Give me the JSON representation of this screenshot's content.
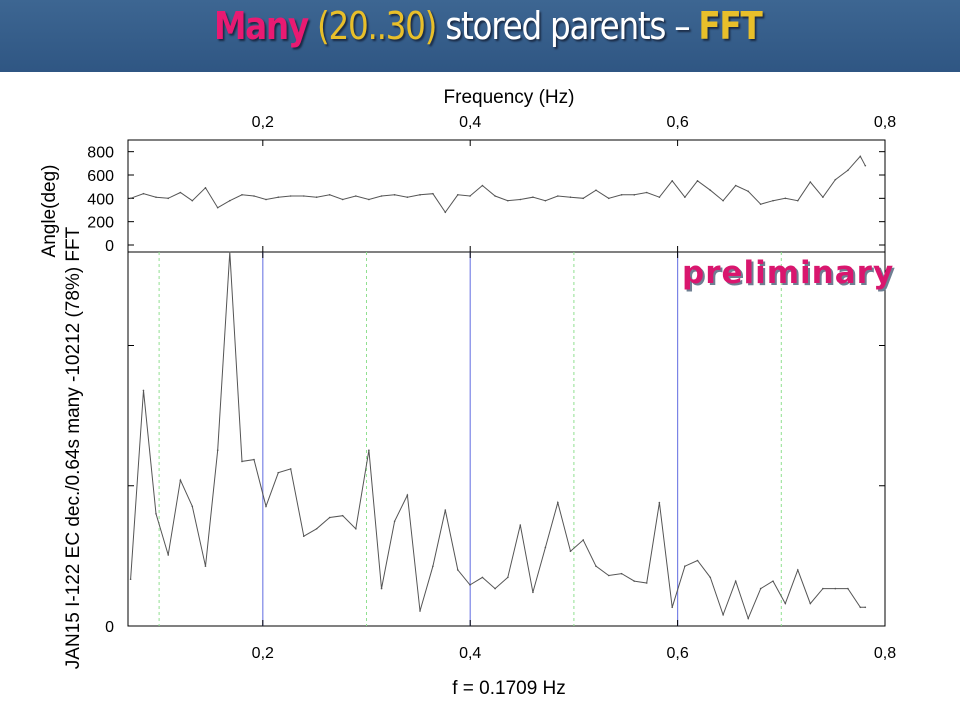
{
  "slide": {
    "title_parts": [
      "Many",
      " (20..30)",
      " stored parents – ",
      "FFT"
    ],
    "colors": {
      "title_bar": "#345b88",
      "many": "#e91a72",
      "accent": "#e8bf2a",
      "preliminary": "#d9166e"
    }
  },
  "annotation": "preliminary",
  "chart_data": [
    {
      "type": "line",
      "panel": "angle",
      "xlabel": "Frequency (Hz)",
      "ylabel": "Angle(deg)",
      "x_ticks": [
        "0,2",
        "0,4",
        "0,6",
        "0,8"
      ],
      "x_tick_values": [
        0.2,
        0.4,
        0.6,
        0.8
      ],
      "y_ticks": [
        "800",
        "600",
        "400",
        "200",
        "0"
      ],
      "y_tick_values": [
        800,
        600,
        400,
        200,
        0
      ],
      "xlim": [
        0.07,
        0.8
      ],
      "ylim": [
        -60,
        900
      ],
      "x": [
        0.0725,
        0.0849,
        0.097,
        0.1088,
        0.1205,
        0.132,
        0.1447,
        0.1565,
        0.1682,
        0.1799,
        0.1915,
        0.2031,
        0.2149,
        0.2269,
        0.2395,
        0.2519,
        0.2645,
        0.277,
        0.2897,
        0.3023,
        0.3145,
        0.3271,
        0.3394,
        0.3516,
        0.364,
        0.376,
        0.388,
        0.3998,
        0.4118,
        0.424,
        0.4363,
        0.4483,
        0.4605,
        0.4725,
        0.4845,
        0.4967,
        0.509,
        0.5213,
        0.5336,
        0.546,
        0.5582,
        0.5702,
        0.5824,
        0.5948,
        0.607,
        0.6192,
        0.6315,
        0.6439,
        0.656,
        0.6681,
        0.6801,
        0.692,
        0.7039,
        0.7159,
        0.728,
        0.7401,
        0.7521,
        0.7642,
        0.7762,
        0.781
      ],
      "y": [
        400,
        440,
        410,
        400,
        450,
        380,
        490,
        320,
        380,
        430,
        420,
        390,
        410,
        420,
        420,
        410,
        430,
        390,
        420,
        390,
        420,
        430,
        410,
        430,
        440,
        280,
        430,
        420,
        510,
        420,
        380,
        390,
        410,
        380,
        420,
        410,
        400,
        470,
        400,
        430,
        430,
        450,
        410,
        550,
        410,
        550,
        470,
        380,
        510,
        460,
        350,
        380,
        400,
        380,
        540,
        410,
        560,
        640,
        760,
        680
      ],
      "series_color": "#555555"
    },
    {
      "type": "line",
      "panel": "fft",
      "xlabel": "f = 0.1709 Hz",
      "ylabel": "JAN15 I-122 EC dec./0.64s many -10212 (78%) FFT",
      "x_ticks": [
        "0,2",
        "0,4",
        "0,6",
        "0,8"
      ],
      "x_tick_values": [
        0.2,
        0.4,
        0.6,
        0.8
      ],
      "y_ticks": [
        "0"
      ],
      "y_tick_values": [
        0
      ],
      "xlim": [
        0.07,
        0.8
      ],
      "ylim": [
        0,
        1
      ],
      "grid": {
        "major_x": [
          0.2,
          0.4,
          0.6
        ],
        "minor_x": [
          0.1,
          0.3,
          0.5,
          0.7
        ],
        "major_color": "#7b84e6",
        "minor_color": "#90e090"
      },
      "peak_f": 0.1709,
      "x": [
        0.0725,
        0.0849,
        0.097,
        0.1088,
        0.1205,
        0.132,
        0.1447,
        0.1565,
        0.1682,
        0.1799,
        0.1915,
        0.2031,
        0.2149,
        0.2269,
        0.2395,
        0.2519,
        0.2645,
        0.277,
        0.2897,
        0.3023,
        0.3145,
        0.3271,
        0.3394,
        0.3516,
        0.364,
        0.376,
        0.388,
        0.3998,
        0.4118,
        0.424,
        0.4363,
        0.4483,
        0.4605,
        0.4725,
        0.4845,
        0.4967,
        0.509,
        0.5213,
        0.5336,
        0.546,
        0.5582,
        0.5702,
        0.5824,
        0.5948,
        0.607,
        0.6192,
        0.6315,
        0.6439,
        0.656,
        0.6681,
        0.6801,
        0.692,
        0.7039,
        0.7159,
        0.728,
        0.7401,
        0.7521,
        0.7642,
        0.7762,
        0.781
      ],
      "y": [
        0.125,
        0.63,
        0.3,
        0.19,
        0.39,
        0.32,
        0.16,
        0.47,
        1.0,
        0.44,
        0.445,
        0.32,
        0.41,
        0.42,
        0.24,
        0.26,
        0.29,
        0.295,
        0.26,
        0.47,
        0.1,
        0.28,
        0.35,
        0.04,
        0.16,
        0.31,
        0.15,
        0.11,
        0.13,
        0.1,
        0.13,
        0.27,
        0.09,
        0.21,
        0.33,
        0.2,
        0.23,
        0.16,
        0.135,
        0.14,
        0.12,
        0.115,
        0.33,
        0.05,
        0.16,
        0.175,
        0.13,
        0.03,
        0.12,
        0.02,
        0.1,
        0.12,
        0.06,
        0.15,
        0.06,
        0.1,
        0.1,
        0.1,
        0.05,
        0.05
      ],
      "series_color": "#555555"
    }
  ]
}
